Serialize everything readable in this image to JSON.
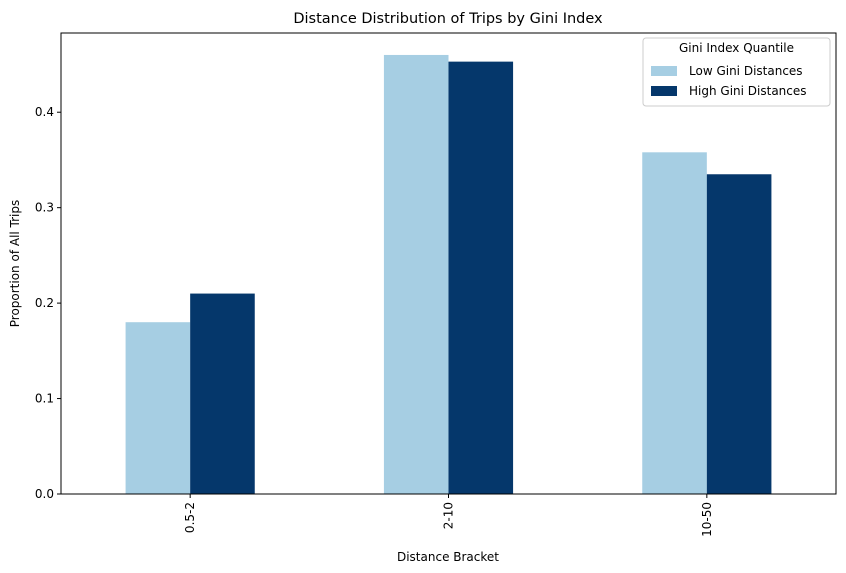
{
  "chart_data": {
    "type": "bar",
    "title": "Distance Distribution of Trips by Gini Index",
    "xlabel": "Distance Bracket",
    "ylabel": "Proportion of All Trips",
    "categories": [
      "0.5-2",
      "2-10",
      "10-50"
    ],
    "series": [
      {
        "name": "Low Gini Distances",
        "values": [
          0.18,
          0.46,
          0.358
        ],
        "color": "#a6cee3"
      },
      {
        "name": "High Gini Distances",
        "values": [
          0.21,
          0.453,
          0.335
        ],
        "color": "#05376b"
      }
    ],
    "ylim": [
      0,
      0.483
    ],
    "yticks": [
      0.0,
      0.1,
      0.2,
      0.3,
      0.4
    ],
    "ytick_labels": [
      "0.0",
      "0.1",
      "0.2",
      "0.3",
      "0.4"
    ],
    "grid": false,
    "legend": {
      "title": "Gini Index Quantile",
      "position": "top-right"
    }
  }
}
